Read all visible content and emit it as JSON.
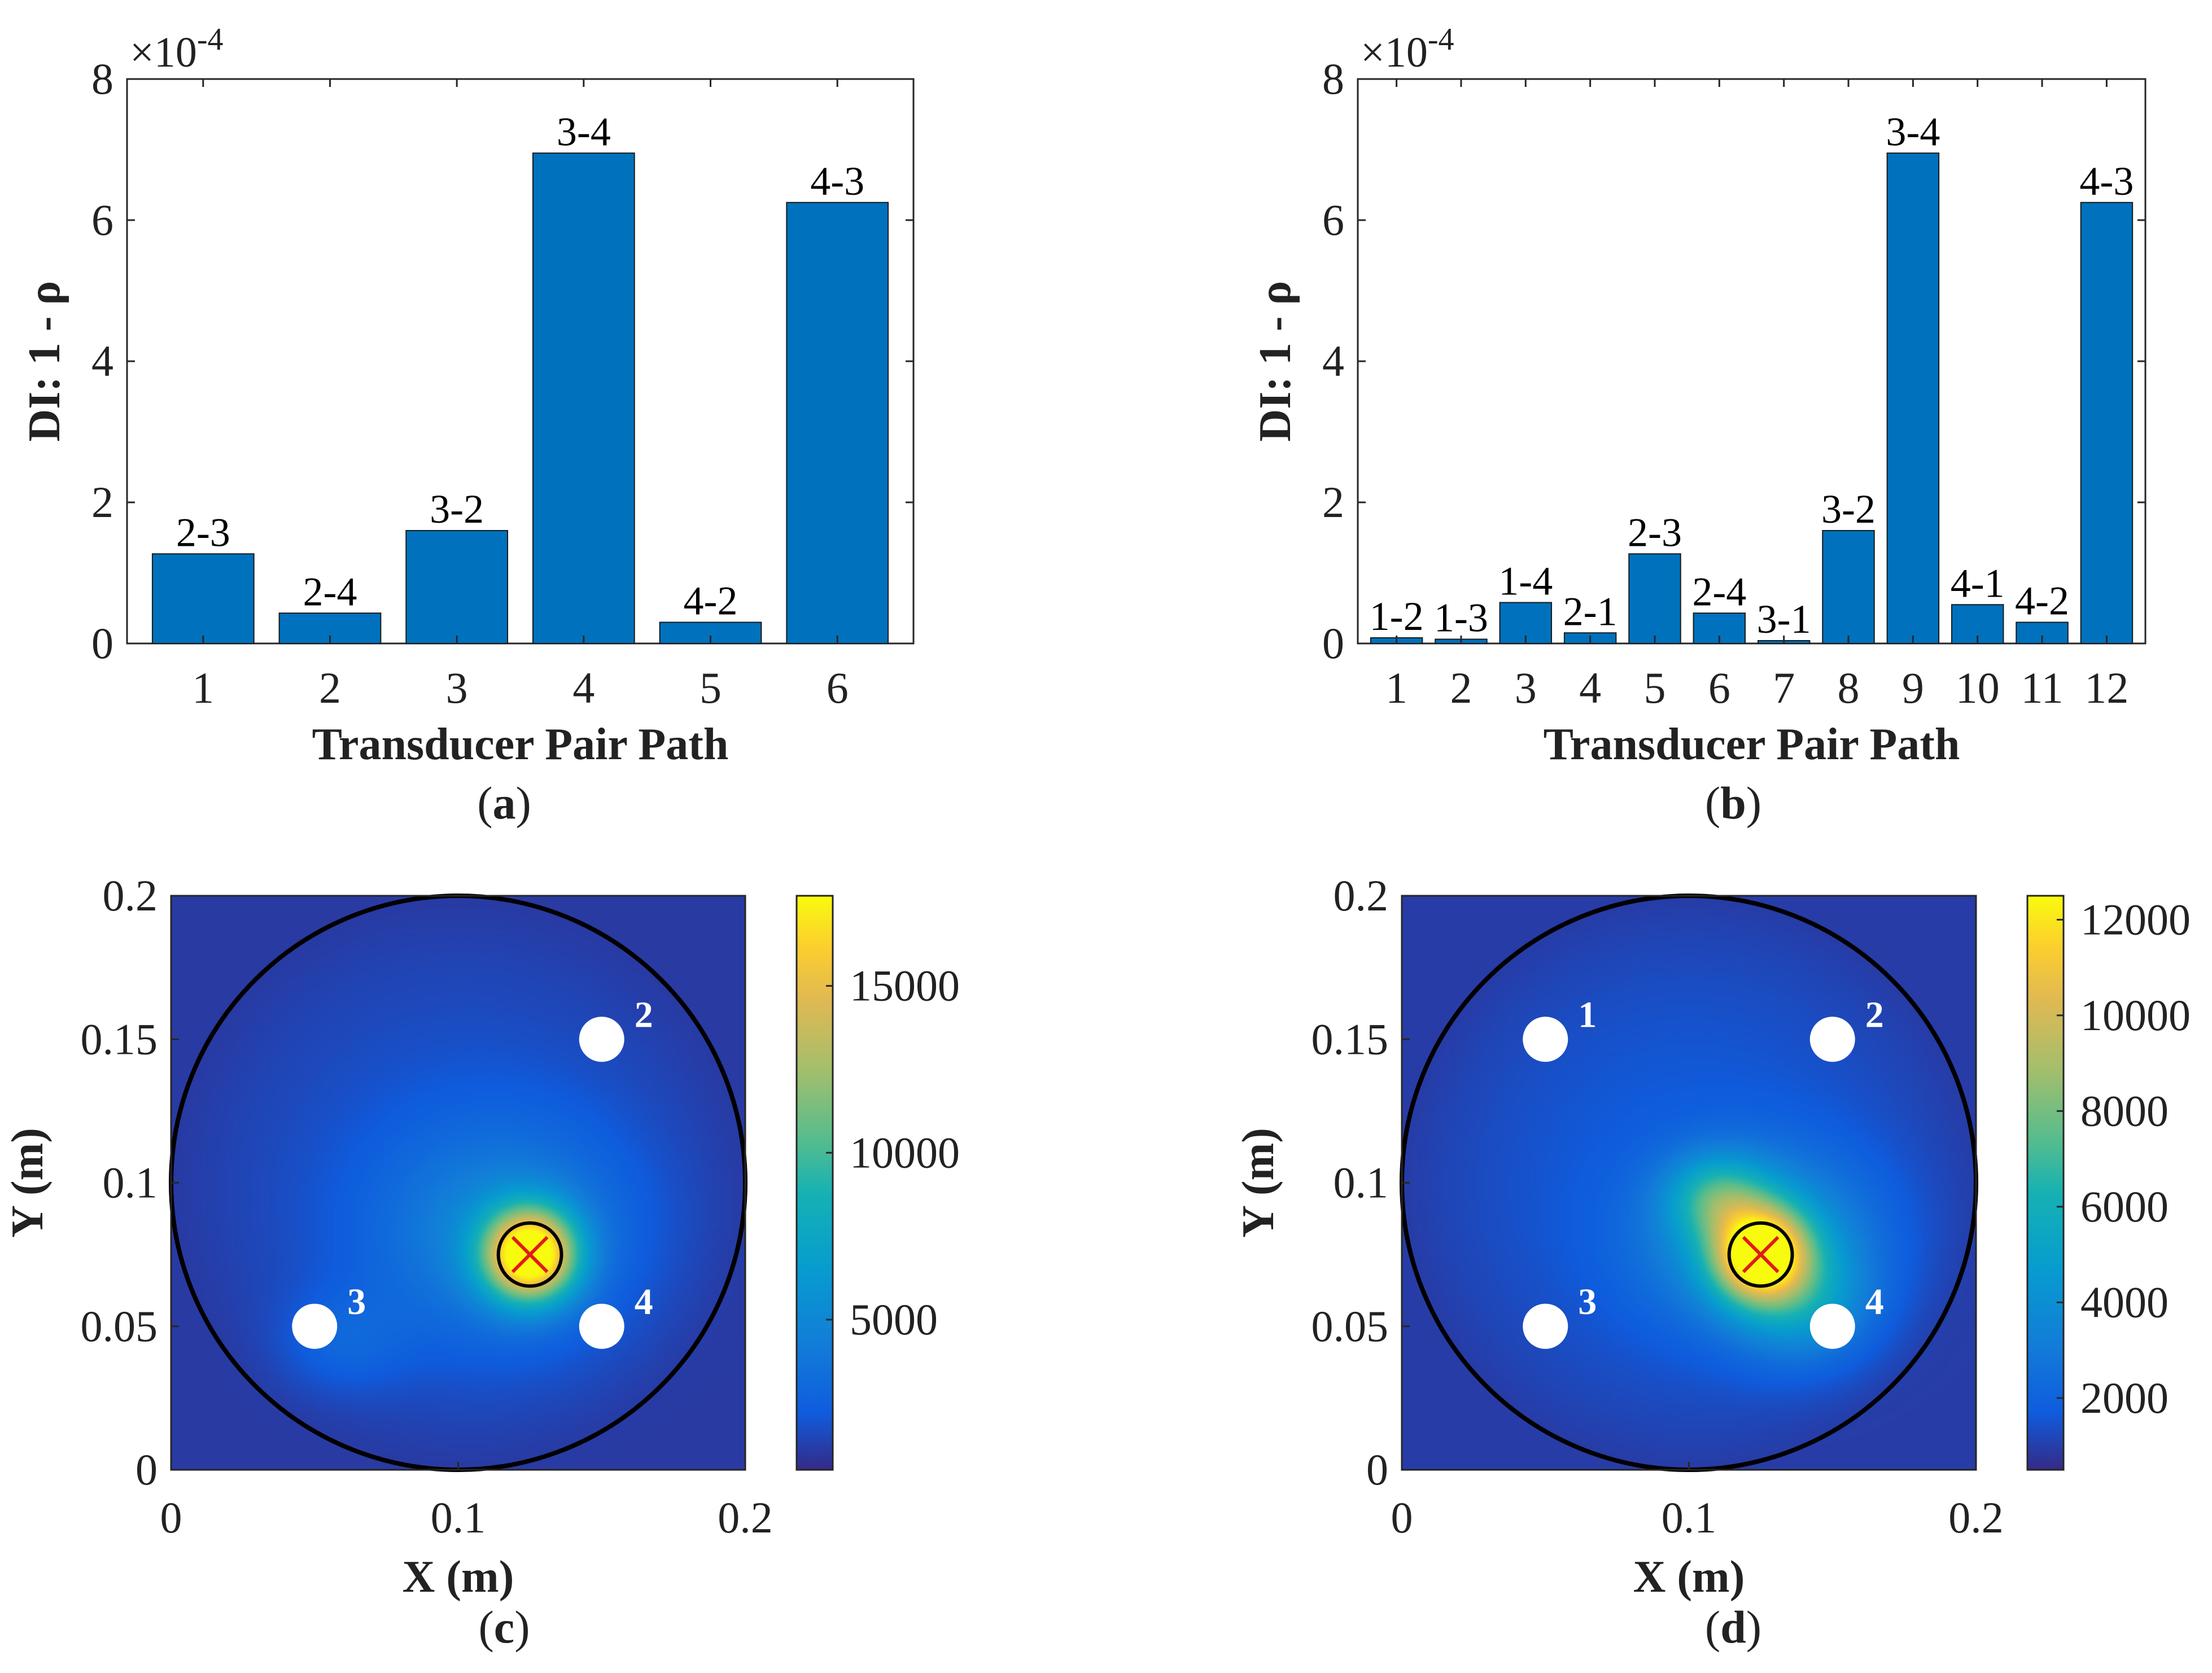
{
  "chart_data": [
    {
      "id": "a",
      "type": "bar",
      "caption_letter": "a",
      "categories": [
        "1",
        "2",
        "3",
        "4",
        "5",
        "6"
      ],
      "values": [
        1.27,
        0.43,
        1.6,
        6.95,
        0.3,
        6.25
      ],
      "bar_labels": [
        "2-3",
        "2-4",
        "3-2",
        "3-4",
        "4-2",
        "4-3"
      ],
      "value_multiplier": "×10",
      "value_exponent": "-4",
      "xlabel": "Transducer Pair Path",
      "ylabel": "DI: 1 - ρ",
      "ylim": [
        0,
        8
      ],
      "yticks": [
        "0",
        "2",
        "4",
        "6",
        "8"
      ],
      "bar_color": "#0072BD"
    },
    {
      "id": "b",
      "type": "bar",
      "caption_letter": "b",
      "categories": [
        "1",
        "2",
        "3",
        "4",
        "5",
        "6",
        "7",
        "8",
        "9",
        "10",
        "11",
        "12"
      ],
      "values": [
        0.08,
        0.06,
        0.58,
        0.15,
        1.27,
        0.43,
        0.04,
        1.6,
        6.95,
        0.55,
        0.3,
        6.25
      ],
      "bar_labels": [
        "1-2",
        "1-3",
        "1-4",
        "2-1",
        "2-3",
        "2-4",
        "3-1",
        "3-2",
        "3-4",
        "4-1",
        "4-2",
        "4-3"
      ],
      "value_multiplier": "×10",
      "value_exponent": "-4",
      "xlabel": "Transducer Pair Path",
      "ylabel": "DI: 1 - ρ",
      "ylim": [
        0,
        8
      ],
      "yticks": [
        "0",
        "2",
        "4",
        "6",
        "8"
      ],
      "bar_color": "#0072BD"
    },
    {
      "id": "c",
      "type": "heatmap",
      "caption_letter": "c",
      "xlabel": "X (m)",
      "ylabel": "Y (m)",
      "xlim": [
        0,
        0.2
      ],
      "ylim": [
        0,
        0.2
      ],
      "xticks": [
        "0",
        "0.1",
        "0.2"
      ],
      "yticks": [
        "0",
        "0.05",
        "0.1",
        "0.15",
        "0.2"
      ],
      "colorbar_range": [
        500,
        17700
      ],
      "colorbar_ticks": [
        "5000",
        "10000",
        "15000"
      ],
      "plate_circle": {
        "center": [
          0.1,
          0.1
        ],
        "radius": 0.1
      },
      "transducers": [
        {
          "label": "2",
          "x": 0.15,
          "y": 0.15
        },
        {
          "label": "3",
          "x": 0.05,
          "y": 0.05
        },
        {
          "label": "4",
          "x": 0.15,
          "y": 0.05
        }
      ],
      "damage": {
        "x": 0.125,
        "y": 0.075,
        "radius": 0.011
      },
      "hotspots": [
        {
          "x": 0.125,
          "y": 0.075,
          "sx": 0.011,
          "sy": 0.011,
          "value": 17200
        },
        {
          "x": 0.115,
          "y": 0.083,
          "sx": 0.03,
          "sy": 0.026,
          "value": 3200
        },
        {
          "x": 0.06,
          "y": 0.045,
          "sx": 0.015,
          "sy": 0.012,
          "value": 1300
        }
      ],
      "background_value": 1900
    },
    {
      "id": "d",
      "type": "heatmap",
      "caption_letter": "d",
      "xlabel": "X (m)",
      "ylabel": "Y (m)",
      "xlim": [
        0,
        0.2
      ],
      "ylim": [
        0,
        0.2
      ],
      "xticks": [
        "0",
        "0.1",
        "0.2"
      ],
      "yticks": [
        "0",
        "0.05",
        "0.1",
        "0.15",
        "0.2"
      ],
      "colorbar_range": [
        500,
        12500
      ],
      "colorbar_ticks": [
        "2000",
        "4000",
        "6000",
        "8000",
        "10000",
        "12000"
      ],
      "plate_circle": {
        "center": [
          0.1,
          0.1
        ],
        "radius": 0.1
      },
      "transducers": [
        {
          "label": "1",
          "x": 0.05,
          "y": 0.15
        },
        {
          "label": "2",
          "x": 0.15,
          "y": 0.15
        },
        {
          "label": "3",
          "x": 0.05,
          "y": 0.05
        },
        {
          "label": "4",
          "x": 0.15,
          "y": 0.05
        }
      ],
      "damage": {
        "x": 0.125,
        "y": 0.075,
        "radius": 0.011
      },
      "hotspots": [
        {
          "x": 0.125,
          "y": 0.075,
          "sx": 0.011,
          "sy": 0.011,
          "value": 10500
        },
        {
          "x": 0.11,
          "y": 0.095,
          "sx": 0.012,
          "sy": 0.01,
          "value": 3800
        },
        {
          "x": 0.125,
          "y": 0.08,
          "sx": 0.026,
          "sy": 0.02,
          "value": 3500
        },
        {
          "x": 0.14,
          "y": 0.058,
          "sx": 0.016,
          "sy": 0.014,
          "value": 2600
        }
      ],
      "background_value": 1700
    }
  ]
}
